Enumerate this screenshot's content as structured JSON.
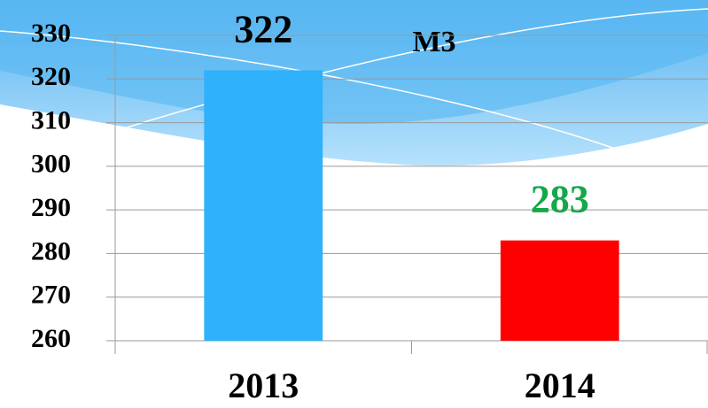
{
  "chart_data": {
    "type": "bar",
    "annotation": "М3",
    "categories": [
      "2013",
      "2014"
    ],
    "values": [
      322,
      283
    ],
    "colors": [
      "#2fb1fb",
      "#ff0000"
    ],
    "label_colors": [
      "#000000",
      "#13a84a"
    ],
    "ylim": [
      260,
      330
    ],
    "yticks": [
      260,
      270,
      280,
      290,
      300,
      310,
      320,
      330
    ],
    "grid": true
  }
}
